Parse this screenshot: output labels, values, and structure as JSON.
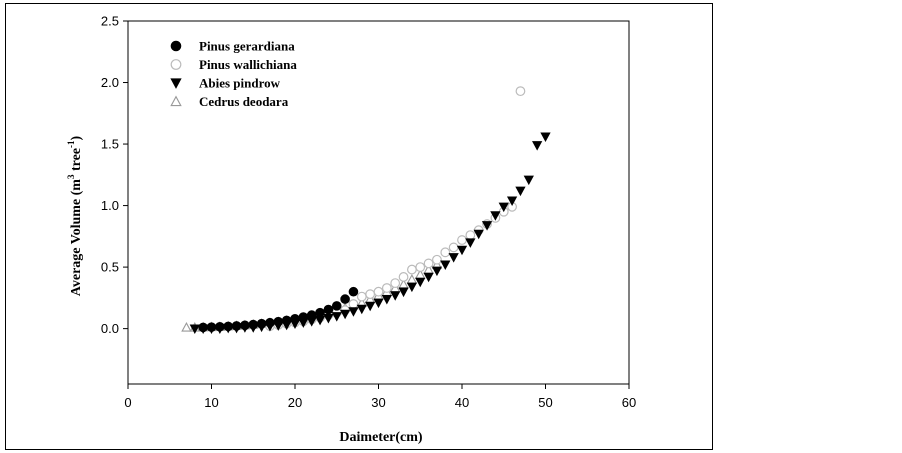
{
  "chart_data": {
    "type": "scatter",
    "xlabel": "Daimeter(cm)",
    "ylabel_prefix": "Average Volume (m",
    "ylabel_sup1": "3",
    "ylabel_mid": " tree",
    "ylabel_sup2": "-1",
    "ylabel_suffix": ")",
    "xlim": [
      0,
      60
    ],
    "ylim": [
      -0.45,
      2.5
    ],
    "x_ticks": [
      0,
      10,
      20,
      30,
      40,
      50,
      60
    ],
    "x_tick_labels": [
      "0",
      "10",
      "20",
      "30",
      "40",
      "50",
      "60"
    ],
    "y_ticks": [
      0.0,
      0.5,
      1.0,
      1.5,
      2.0,
      2.5
    ],
    "y_tick_labels": [
      "0.0",
      "0.5",
      "1.0",
      "1.5",
      "2.0",
      "2.5"
    ],
    "legend_position": "top-left",
    "grid": false,
    "series": [
      {
        "name": "Pinus gerardiana",
        "marker": "filled-circle",
        "color": "#000000",
        "x": [
          9,
          10,
          11,
          12,
          13,
          14,
          15,
          16,
          17,
          18,
          19,
          20,
          21,
          22,
          23,
          24,
          25,
          26,
          27
        ],
        "y": [
          0.01,
          0.012,
          0.015,
          0.018,
          0.022,
          0.027,
          0.033,
          0.04,
          0.048,
          0.057,
          0.067,
          0.08,
          0.094,
          0.11,
          0.13,
          0.155,
          0.185,
          0.24,
          0.3
        ]
      },
      {
        "name": "Pinus wallichiana",
        "marker": "open-circle",
        "color": "#bbbbbb",
        "x": [
          17,
          18,
          19,
          20,
          21,
          22,
          23,
          24,
          25,
          26,
          27,
          28,
          29,
          30,
          31,
          32,
          33,
          34,
          35,
          36,
          37,
          38,
          39,
          40,
          41,
          42,
          43,
          44,
          45,
          46,
          47
        ],
        "y": [
          0.02,
          0.03,
          0.04,
          0.05,
          0.06,
          0.075,
          0.09,
          0.11,
          0.13,
          0.15,
          0.2,
          0.26,
          0.28,
          0.3,
          0.33,
          0.37,
          0.42,
          0.48,
          0.5,
          0.53,
          0.56,
          0.62,
          0.66,
          0.72,
          0.76,
          0.8,
          0.85,
          0.9,
          0.95,
          0.99,
          1.93
        ]
      },
      {
        "name": "Abies pindrow",
        "marker": "filled-triangle-down",
        "color": "#000000",
        "x": [
          8,
          9,
          10,
          11,
          12,
          13,
          14,
          15,
          16,
          17,
          18,
          19,
          20,
          21,
          22,
          23,
          24,
          25,
          26,
          27,
          28,
          29,
          30,
          31,
          32,
          33,
          34,
          35,
          36,
          37,
          38,
          39,
          40,
          41,
          42,
          43,
          44,
          45,
          46,
          47,
          48,
          49,
          50
        ],
        "y": [
          0.0,
          0.0,
          0.0,
          0.0,
          0.005,
          0.005,
          0.01,
          0.01,
          0.015,
          0.02,
          0.025,
          0.03,
          0.04,
          0.05,
          0.06,
          0.07,
          0.085,
          0.1,
          0.12,
          0.14,
          0.16,
          0.185,
          0.21,
          0.24,
          0.27,
          0.3,
          0.34,
          0.38,
          0.42,
          0.47,
          0.52,
          0.58,
          0.64,
          0.7,
          0.77,
          0.84,
          0.92,
          0.99,
          1.04,
          1.12,
          1.21,
          1.49,
          1.56
        ]
      },
      {
        "name": "Cedrus deodara",
        "marker": "open-triangle-up",
        "color": "#999999",
        "x": [
          7,
          8,
          9,
          10,
          11,
          12,
          13,
          14,
          15,
          16,
          17,
          18,
          19,
          20,
          21,
          22,
          23,
          24,
          25,
          26,
          27,
          28,
          29,
          30,
          31,
          32,
          33,
          34,
          35,
          36,
          37
        ],
        "y": [
          0.01,
          0.01,
          0.012,
          0.014,
          0.016,
          0.02,
          0.024,
          0.028,
          0.033,
          0.04,
          0.047,
          0.055,
          0.065,
          0.076,
          0.088,
          0.1,
          0.115,
          0.13,
          0.15,
          0.17,
          0.19,
          0.21,
          0.24,
          0.27,
          0.3,
          0.33,
          0.36,
          0.4,
          0.44,
          0.48,
          0.52
        ]
      }
    ]
  }
}
